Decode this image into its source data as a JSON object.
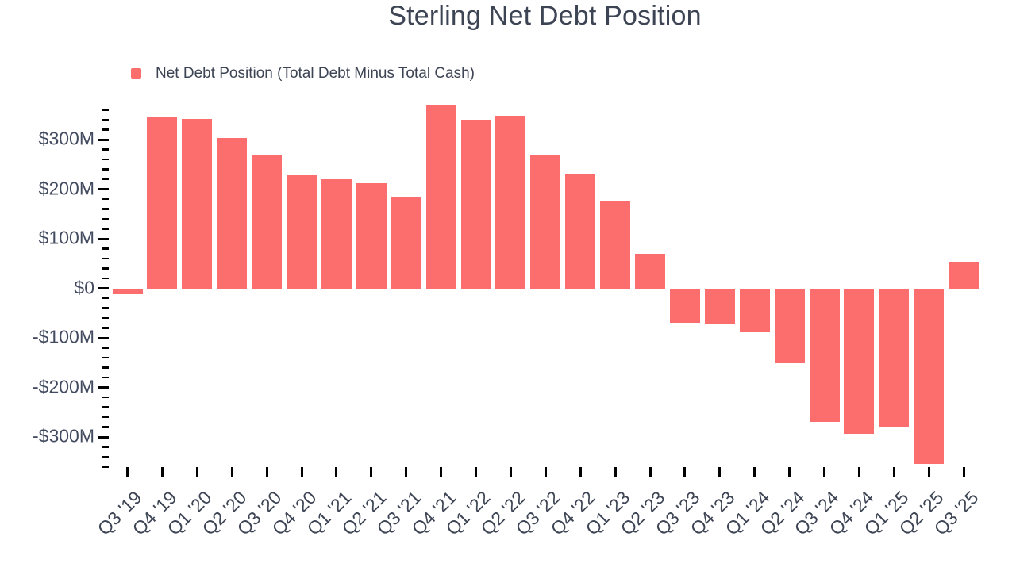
{
  "chart_data": {
    "type": "bar",
    "title": "Sterling Net Debt Position",
    "categories": [
      "Q3 '19",
      "Q4 '19",
      "Q1 '20",
      "Q2 '20",
      "Q3 '20",
      "Q4 '20",
      "Q1 '21",
      "Q2 '21",
      "Q3 '21",
      "Q4 '21",
      "Q1 '22",
      "Q2 '22",
      "Q3 '22",
      "Q4 '22",
      "Q1 '23",
      "Q2 '23",
      "Q3 '23",
      "Q4 '23",
      "Q1 '24",
      "Q2 '24",
      "Q3 '24",
      "Q4 '24",
      "Q1 '25",
      "Q2 '25",
      "Q3 '25"
    ],
    "series": [
      {
        "name": "Net Debt Position (Total Debt Minus Total Cash)",
        "color": "#fc6d6d",
        "values": [
          -12,
          346,
          342,
          303,
          268,
          228,
          220,
          212,
          184,
          369,
          340,
          348,
          270,
          232,
          177,
          70,
          -70,
          -73,
          -88,
          -151,
          -270,
          -293,
          -279,
          -354,
          53
        ]
      }
    ],
    "unit": "USD millions",
    "xlabel": "",
    "ylabel": "",
    "ylim": [
      -375,
      375
    ],
    "y_axis": {
      "tick_range": [
        -360,
        360
      ],
      "minor_tick_step": 20,
      "major_tick_step": 100,
      "major_ticks": [
        {
          "value": 300,
          "label": "$300M"
        },
        {
          "value": 200,
          "label": "$200M"
        },
        {
          "value": 100,
          "label": "$100M"
        },
        {
          "value": 0,
          "label": "$0"
        },
        {
          "value": -100,
          "label": "-$100M"
        },
        {
          "value": -200,
          "label": "-$200M"
        },
        {
          "value": -300,
          "label": "-$300M"
        }
      ]
    },
    "grid": false,
    "legend_position": "top-left",
    "background_color": "#ffffff",
    "text_color": "#3d4454",
    "axis_label_color": "#434b60",
    "tick_color": "#000000"
  }
}
